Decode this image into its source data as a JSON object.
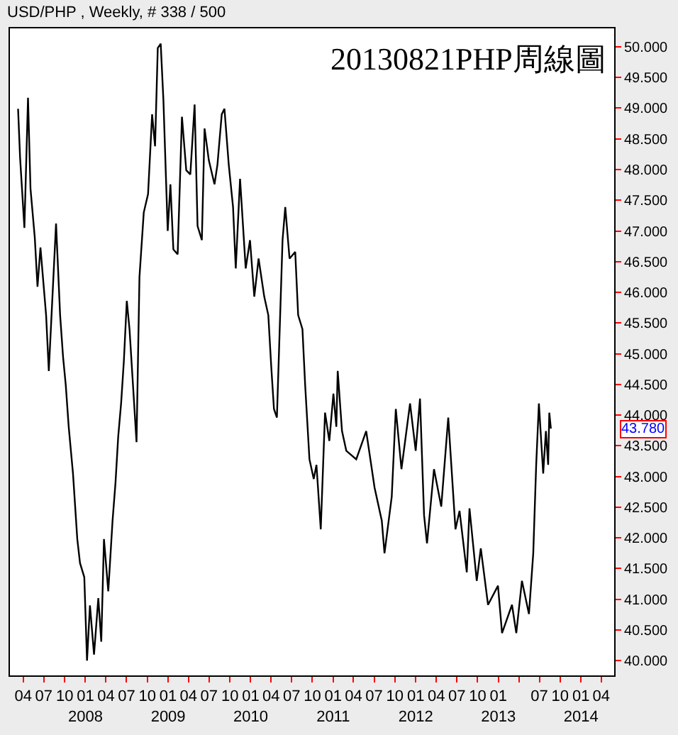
{
  "chart_data": {
    "type": "line",
    "title": "20130821PHP周線圖",
    "annotations": [
      "USD/PHP , Weekly, # 338 / 500",
      "43.780"
    ],
    "x": [
      "2007-03-09",
      "2007-03-18",
      "2007-04-06",
      "2007-04-22",
      "2007-05-03",
      "2007-05-22",
      "2007-06-03",
      "2007-06-16",
      "2007-07-11",
      "2007-07-23",
      "2007-08-24",
      "2007-09-11",
      "2007-09-24",
      "2007-10-06",
      "2007-10-19",
      "2007-11-07",
      "2007-11-26",
      "2007-12-08",
      "2007-12-27",
      "2008-01-08",
      "2008-01-21",
      "2008-02-08",
      "2008-02-27",
      "2008-03-11",
      "2008-03-23",
      "2008-04-11",
      "2008-04-30",
      "2008-05-13",
      "2008-05-25",
      "2008-06-07",
      "2008-06-19",
      "2008-07-02",
      "2008-07-14",
      "2008-08-14",
      "2008-08-27",
      "2008-09-15",
      "2008-10-04",
      "2008-10-22",
      "2008-11-04",
      "2008-11-16",
      "2008-11-29",
      "2008-12-11",
      "2008-12-30",
      "2009-01-11",
      "2009-01-24",
      "2009-02-12",
      "2009-03-03",
      "2009-03-22",
      "2009-04-09",
      "2009-04-28",
      "2009-05-11",
      "2009-05-30",
      "2009-06-11",
      "2009-06-30",
      "2009-07-25",
      "2009-08-07",
      "2009-08-26",
      "2009-09-07",
      "2009-09-26",
      "2009-10-15",
      "2009-10-27",
      "2009-11-15",
      "2009-12-10",
      "2009-12-29",
      "2010-01-17",
      "2010-02-05",
      "2010-03-02",
      "2010-03-20",
      "2010-04-02",
      "2010-04-14",
      "2010-04-27",
      "2010-05-22",
      "2010-06-03",
      "2010-06-22",
      "2010-07-17",
      "2010-07-30",
      "2010-08-18",
      "2010-08-30",
      "2010-09-18",
      "2010-10-07",
      "2010-10-19",
      "2010-11-07",
      "2010-11-26",
      "2010-12-15",
      "2011-01-02",
      "2011-01-15",
      "2011-01-21",
      "2011-02-09",
      "2011-02-28",
      "2011-04-13",
      "2011-05-27",
      "2011-07-03",
      "2011-08-04",
      "2011-08-16",
      "2011-09-17",
      "2011-10-05",
      "2011-10-30",
      "2011-12-07",
      "2012-01-01",
      "2012-01-20",
      "2012-02-07",
      "2012-02-20",
      "2012-03-22",
      "2012-04-23",
      "2012-05-24",
      "2012-06-25",
      "2012-07-13",
      "2012-08-14",
      "2012-08-26",
      "2012-09-27",
      "2012-10-15",
      "2012-11-16",
      "2012-12-30",
      "2013-01-17",
      "2013-03-02",
      "2013-03-21",
      "2013-04-15",
      "2013-05-16",
      "2013-06-04",
      "2013-06-17",
      "2013-06-29",
      "2013-07-18",
      "2013-07-30",
      "2013-08-09",
      "2013-08-14",
      "2013-08-21"
    ],
    "series": [
      {
        "color": "#000000",
        "values": [
          48.99,
          48.19,
          47.05,
          49.17,
          47.69,
          46.89,
          46.09,
          46.73,
          45.63,
          44.72,
          47.12,
          45.63,
          44.95,
          44.49,
          43.81,
          43.05,
          41.98,
          41.59,
          41.36,
          40.0,
          40.9,
          40.1,
          41.02,
          40.31,
          41.98,
          41.13,
          42.28,
          42.9,
          43.65,
          44.2,
          44.88,
          45.86,
          45.4,
          43.56,
          46.25,
          47.3,
          47.6,
          48.9,
          48.38,
          49.98,
          50.05,
          49.13,
          47.0,
          47.76,
          46.7,
          46.62,
          48.86,
          47.99,
          47.92,
          49.06,
          47.08,
          46.85,
          48.67,
          48.15,
          47.76,
          48.08,
          48.9,
          48.99,
          48.08,
          47.39,
          46.39,
          47.85,
          46.39,
          46.85,
          45.93,
          46.55,
          45.93,
          45.63,
          44.79,
          44.1,
          43.96,
          46.85,
          47.39,
          46.55,
          46.66,
          45.63,
          45.4,
          44.49,
          43.28,
          42.96,
          43.19,
          42.14,
          44.04,
          43.58,
          44.35,
          43.81,
          44.72,
          43.74,
          43.42,
          43.28,
          43.74,
          42.82,
          42.28,
          41.75,
          42.67,
          44.1,
          43.12,
          44.19,
          43.42,
          44.27,
          42.37,
          41.91,
          43.12,
          42.51,
          43.96,
          42.14,
          42.44,
          41.44,
          42.48,
          41.3,
          41.83,
          40.91,
          41.22,
          40.45,
          40.91,
          40.45,
          41.3,
          40.76,
          41.75,
          43.19,
          44.19,
          43.05,
          43.74,
          43.19,
          44.04,
          43.78
        ]
      }
    ],
    "xlim": [
      "2007-02-01",
      "2014-05-28"
    ],
    "xticks": [
      {
        "value": "2007-04-01",
        "label": "04"
      },
      {
        "value": "2007-07-01",
        "label": "07"
      },
      {
        "value": "2007-10-01",
        "label": "10"
      },
      {
        "value": "2008-01-01",
        "label": "01\n2008"
      },
      {
        "value": "2008-04-01",
        "label": "04"
      },
      {
        "value": "2008-07-01",
        "label": "07"
      },
      {
        "value": "2008-10-01",
        "label": "10"
      },
      {
        "value": "2009-01-01",
        "label": "01\n2009"
      },
      {
        "value": "2009-04-01",
        "label": "04"
      },
      {
        "value": "2009-07-01",
        "label": "07"
      },
      {
        "value": "2009-10-01",
        "label": "10"
      },
      {
        "value": "2010-01-01",
        "label": "01\n2010"
      },
      {
        "value": "2010-04-01",
        "label": "04"
      },
      {
        "value": "2010-07-01",
        "label": "07"
      },
      {
        "value": "2010-10-01",
        "label": "10"
      },
      {
        "value": "2011-01-01",
        "label": "01\n2011"
      },
      {
        "value": "2011-04-01",
        "label": "04"
      },
      {
        "value": "2011-07-01",
        "label": "07"
      },
      {
        "value": "2011-10-01",
        "label": "10"
      },
      {
        "value": "2012-01-01",
        "label": "01\n2012"
      },
      {
        "value": "2012-04-01",
        "label": "04"
      },
      {
        "value": "2012-07-01",
        "label": "07"
      },
      {
        "value": "2012-10-01",
        "label": "10"
      },
      {
        "value": "2013-01-01",
        "label": "01\n2013"
      },
      {
        "value": "2013-04-01",
        "label": null
      },
      {
        "value": "2013-07-01",
        "label": "07"
      },
      {
        "value": "2013-10-01",
        "label": "10"
      },
      {
        "value": "2014-01-01",
        "label": "01\n2014"
      },
      {
        "value": "2014-04-01",
        "label": "04"
      }
    ],
    "ylim": [
      39.76,
      50.3
    ],
    "yticks": [
      {
        "value": 40,
        "label": "40.000"
      },
      {
        "value": 40.5,
        "label": "40.500"
      },
      {
        "value": 41,
        "label": "41.000"
      },
      {
        "value": 41.5,
        "label": "41.500"
      },
      {
        "value": 42,
        "label": "42.000"
      },
      {
        "value": 42.5,
        "label": "42.500"
      },
      {
        "value": 43,
        "label": "43.000"
      },
      {
        "value": 43.5,
        "label": "43.500"
      },
      {
        "value": 44,
        "label": "44.000"
      },
      {
        "value": 44.5,
        "label": "44.500"
      },
      {
        "value": 45,
        "label": "45.000"
      },
      {
        "value": 45.5,
        "label": "45.500"
      },
      {
        "value": 46,
        "label": "46.000"
      },
      {
        "value": 46.5,
        "label": "46.500"
      },
      {
        "value": 47,
        "label": "47.000"
      },
      {
        "value": 47.5,
        "label": "47.500"
      },
      {
        "value": 48,
        "label": "48.000"
      },
      {
        "value": 48.5,
        "label": "48.500"
      },
      {
        "value": 49,
        "label": "49.000"
      },
      {
        "value": 49.5,
        "label": "49.500"
      },
      {
        "value": 50,
        "label": "50.000"
      }
    ],
    "marker": "none",
    "line_style": "solid"
  }
}
